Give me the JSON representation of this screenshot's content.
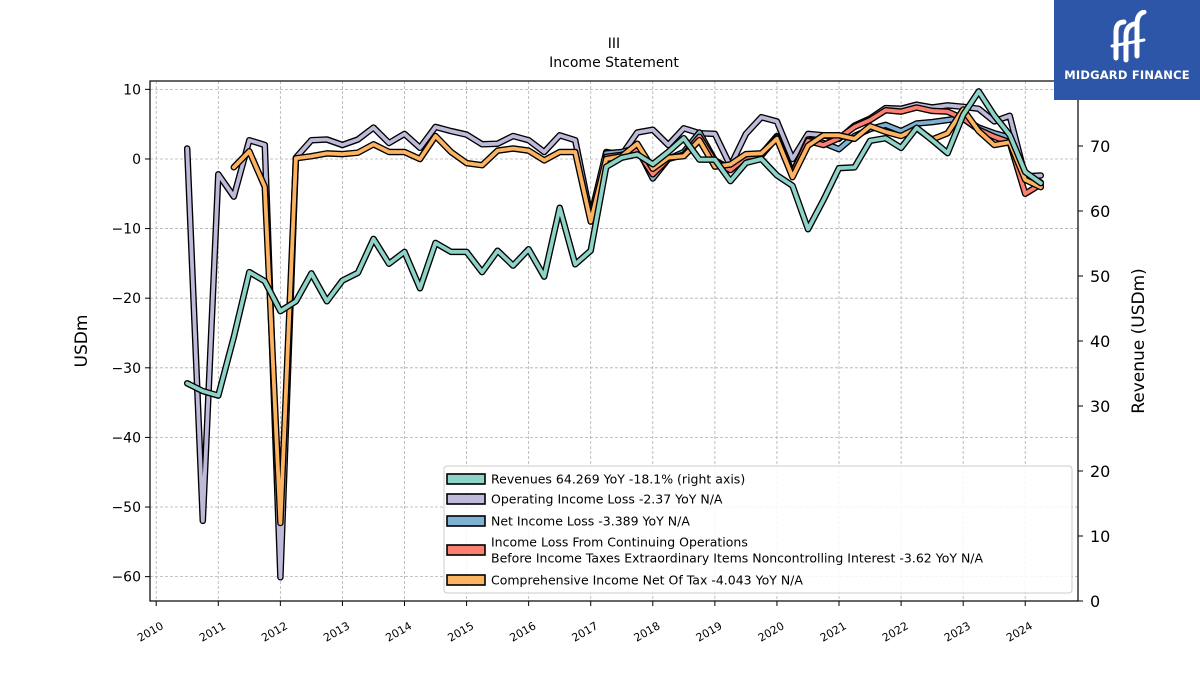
{
  "brand": {
    "name": "MIDGARD FINANCE"
  },
  "chart_data": {
    "type": "line",
    "title": "III",
    "subtitle": "Income Statement",
    "ylabel": "USDm",
    "ylabel_right": "Revenue (USDm)",
    "ylim": [
      -63.5,
      11.2
    ],
    "ylim_right": [
      0,
      80
    ],
    "xlim": [
      2009.9,
      2024.85
    ],
    "yticks": [
      10,
      0,
      -10,
      -20,
      -30,
      -40,
      -50,
      -60
    ],
    "yticks_right": [
      0,
      10,
      20,
      30,
      40,
      50,
      60,
      70
    ],
    "xticks": [
      2010,
      2011,
      2012,
      2013,
      2014,
      2015,
      2016,
      2017,
      2018,
      2019,
      2020,
      2021,
      2022,
      2023,
      2024
    ],
    "grid": true,
    "legend_position": "lower right",
    "series": [
      {
        "name": "Revenues  64.269 YoY -18.1% (right axis)",
        "color": "#8dd3c7",
        "axis": "right",
        "points": [
          [
            2010.5,
            33.5
          ],
          [
            2010.75,
            32.3
          ],
          [
            2011.0,
            31.6
          ],
          [
            2011.25,
            40.6
          ],
          [
            2011.5,
            50.6
          ],
          [
            2011.75,
            49.2
          ],
          [
            2012.0,
            44.6
          ],
          [
            2012.25,
            46.1
          ],
          [
            2012.5,
            50.4
          ],
          [
            2012.75,
            46.1
          ],
          [
            2013.0,
            49.3
          ],
          [
            2013.25,
            50.5
          ],
          [
            2013.5,
            55.7
          ],
          [
            2013.75,
            51.9
          ],
          [
            2014.0,
            53.7
          ],
          [
            2014.25,
            48.1
          ],
          [
            2014.5,
            55.1
          ],
          [
            2014.75,
            53.7
          ],
          [
            2015.0,
            53.7
          ],
          [
            2015.25,
            50.6
          ],
          [
            2015.5,
            53.9
          ],
          [
            2015.75,
            51.6
          ],
          [
            2016.0,
            54.1
          ],
          [
            2016.25,
            49.9
          ],
          [
            2016.5,
            60.5
          ],
          [
            2016.75,
            51.8
          ],
          [
            2017.0,
            53.9
          ],
          [
            2017.25,
            66.8
          ],
          [
            2017.5,
            68.2
          ],
          [
            2017.75,
            68.7
          ],
          [
            2018.0,
            67.2
          ],
          [
            2018.25,
            69.1
          ],
          [
            2018.5,
            71.2
          ],
          [
            2018.75,
            67.9
          ],
          [
            2019.0,
            67.9
          ],
          [
            2019.25,
            64.6
          ],
          [
            2019.5,
            67.4
          ],
          [
            2019.75,
            68.0
          ],
          [
            2020.0,
            65.5
          ],
          [
            2020.25,
            63.9
          ],
          [
            2020.5,
            57.2
          ],
          [
            2020.75,
            61.7
          ],
          [
            2021.0,
            66.6
          ],
          [
            2021.25,
            66.7
          ],
          [
            2021.5,
            70.8
          ],
          [
            2021.75,
            71.2
          ],
          [
            2022.0,
            69.7
          ],
          [
            2022.25,
            72.8
          ],
          [
            2022.5,
            70.9
          ],
          [
            2022.75,
            68.9
          ],
          [
            2023.0,
            74.8
          ],
          [
            2023.25,
            78.4
          ],
          [
            2023.5,
            74.7
          ],
          [
            2023.75,
            71.7
          ],
          [
            2024.0,
            66.0
          ],
          [
            2024.25,
            64.3
          ]
        ]
      },
      {
        "name": "Operating Income Loss  -2.37 YoY N/A",
        "color": "#bebada",
        "axis": "left",
        "points": [
          [
            2010.5,
            1.5
          ],
          [
            2010.75,
            -52.0
          ],
          [
            2011.0,
            -2.2
          ],
          [
            2011.25,
            -5.4
          ],
          [
            2011.5,
            2.7
          ],
          [
            2011.75,
            2.0
          ],
          [
            2012.0,
            -60.1
          ],
          [
            2012.25,
            0.2
          ],
          [
            2012.5,
            2.7
          ],
          [
            2012.75,
            2.8
          ],
          [
            2013.0,
            2.0
          ],
          [
            2013.25,
            2.8
          ],
          [
            2013.5,
            4.5
          ],
          [
            2013.75,
            2.3
          ],
          [
            2014.0,
            3.6
          ],
          [
            2014.25,
            1.6
          ],
          [
            2014.5,
            4.6
          ],
          [
            2014.75,
            4.0
          ],
          [
            2015.0,
            3.5
          ],
          [
            2015.25,
            2.1
          ],
          [
            2015.5,
            2.2
          ],
          [
            2015.75,
            3.3
          ],
          [
            2016.0,
            2.7
          ],
          [
            2016.25,
            1.0
          ],
          [
            2016.5,
            3.4
          ],
          [
            2016.75,
            2.7
          ],
          [
            2017.0,
            -8.3
          ],
          [
            2017.25,
            1.0
          ],
          [
            2017.5,
            0.6
          ],
          [
            2017.75,
            3.8
          ],
          [
            2018.0,
            4.2
          ],
          [
            2018.25,
            2.0
          ],
          [
            2018.5,
            4.4
          ],
          [
            2018.75,
            3.7
          ],
          [
            2019.0,
            3.6
          ],
          [
            2019.25,
            -1.0
          ],
          [
            2019.5,
            3.6
          ],
          [
            2019.75,
            6.0
          ],
          [
            2020.0,
            5.4
          ],
          [
            2020.25,
            0.0
          ],
          [
            2020.5,
            3.6
          ],
          [
            2020.75,
            3.4
          ],
          [
            2021.0,
            2.9
          ],
          [
            2021.25,
            4.8
          ],
          [
            2021.5,
            5.8
          ],
          [
            2021.75,
            7.3
          ],
          [
            2022.0,
            7.2
          ],
          [
            2022.25,
            7.8
          ],
          [
            2022.5,
            7.4
          ],
          [
            2022.75,
            7.7
          ],
          [
            2023.0,
            7.5
          ],
          [
            2023.25,
            7.2
          ],
          [
            2023.5,
            5.4
          ],
          [
            2023.75,
            6.2
          ],
          [
            2024.0,
            -2.5
          ],
          [
            2024.25,
            -2.37
          ]
        ]
      },
      {
        "name": "Net Income Loss  -3.389 YoY N/A",
        "color": "#80b1d3",
        "axis": "left",
        "points": [
          [
            2017.25,
            0.8
          ],
          [
            2017.5,
            1.0
          ],
          [
            2017.75,
            1.6
          ],
          [
            2018.0,
            -2.8
          ],
          [
            2018.25,
            0.0
          ],
          [
            2018.5,
            1.0
          ],
          [
            2018.75,
            3.8
          ],
          [
            2019.0,
            -0.2
          ],
          [
            2019.25,
            -1.4
          ],
          [
            2019.5,
            0.5
          ],
          [
            2019.75,
            0.7
          ],
          [
            2020.0,
            3.3
          ],
          [
            2020.25,
            -2.0
          ],
          [
            2020.5,
            2.8
          ],
          [
            2020.75,
            2.3
          ],
          [
            2021.0,
            1.4
          ],
          [
            2021.25,
            3.3
          ],
          [
            2021.5,
            4.3
          ],
          [
            2021.75,
            4.9
          ],
          [
            2022.0,
            4.0
          ],
          [
            2022.25,
            5.1
          ],
          [
            2022.5,
            5.3
          ],
          [
            2022.75,
            5.6
          ],
          [
            2023.0,
            5.9
          ],
          [
            2023.25,
            4.5
          ],
          [
            2023.5,
            3.7
          ],
          [
            2023.75,
            3.1
          ],
          [
            2024.0,
            -2.3
          ],
          [
            2024.25,
            -3.389
          ]
        ]
      },
      {
        "name": "Income Loss From Continuing Operations\nBefore Income Taxes Extraordinary Items Noncontrolling Interest  -3.62 YoY N/A",
        "color": "#fb8072",
        "axis": "left",
        "points": [
          [
            2017.25,
            0.3
          ],
          [
            2017.5,
            0.6
          ],
          [
            2017.75,
            1.2
          ],
          [
            2018.0,
            -2.2
          ],
          [
            2018.25,
            0.0
          ],
          [
            2018.5,
            0.6
          ],
          [
            2018.75,
            3.2
          ],
          [
            2019.0,
            -0.4
          ],
          [
            2019.25,
            -1.6
          ],
          [
            2019.5,
            0.3
          ],
          [
            2019.75,
            0.5
          ],
          [
            2020.0,
            3.1
          ],
          [
            2020.25,
            -2.1
          ],
          [
            2020.5,
            2.6
          ],
          [
            2020.75,
            2.0
          ],
          [
            2021.0,
            3.0
          ],
          [
            2021.25,
            4.6
          ],
          [
            2021.5,
            5.6
          ],
          [
            2021.75,
            7.0
          ],
          [
            2022.0,
            6.8
          ],
          [
            2022.25,
            7.4
          ],
          [
            2022.5,
            6.9
          ],
          [
            2022.75,
            6.8
          ],
          [
            2023.0,
            5.8
          ],
          [
            2023.25,
            4.2
          ],
          [
            2023.5,
            3.2
          ],
          [
            2023.75,
            2.4
          ],
          [
            2024.0,
            -5.0
          ],
          [
            2024.25,
            -3.62
          ]
        ]
      },
      {
        "name": "Comprehensive Income Net Of Tax  -4.043 YoY N/A",
        "color": "#fdb462",
        "axis": "left",
        "points": [
          [
            2011.25,
            -1.2
          ],
          [
            2011.5,
            1.1
          ],
          [
            2011.75,
            -4.0
          ],
          [
            2012.0,
            -52.3
          ],
          [
            2012.25,
            0.1
          ],
          [
            2012.5,
            0.4
          ],
          [
            2012.75,
            0.8
          ],
          [
            2013.0,
            0.7
          ],
          [
            2013.25,
            0.9
          ],
          [
            2013.5,
            2.1
          ],
          [
            2013.75,
            1.0
          ],
          [
            2014.0,
            1.0
          ],
          [
            2014.25,
            0.0
          ],
          [
            2014.5,
            3.3
          ],
          [
            2014.75,
            1.0
          ],
          [
            2015.0,
            -0.6
          ],
          [
            2015.25,
            -0.9
          ],
          [
            2015.5,
            1.2
          ],
          [
            2015.75,
            1.5
          ],
          [
            2016.0,
            1.2
          ],
          [
            2016.25,
            -0.2
          ],
          [
            2016.5,
            1.0
          ],
          [
            2016.75,
            1.0
          ],
          [
            2017.0,
            -9.0
          ],
          [
            2017.25,
            0.0
          ],
          [
            2017.5,
            0.4
          ],
          [
            2017.75,
            2.2
          ],
          [
            2018.0,
            -1.4
          ],
          [
            2018.25,
            0.2
          ],
          [
            2018.5,
            0.4
          ],
          [
            2018.75,
            2.7
          ],
          [
            2019.0,
            -1.1
          ],
          [
            2019.25,
            -0.8
          ],
          [
            2019.5,
            0.7
          ],
          [
            2019.75,
            0.8
          ],
          [
            2020.0,
            2.9
          ],
          [
            2020.25,
            -2.6
          ],
          [
            2020.5,
            1.9
          ],
          [
            2020.75,
            3.4
          ],
          [
            2021.0,
            3.4
          ],
          [
            2021.25,
            2.9
          ],
          [
            2021.5,
            4.7
          ],
          [
            2021.75,
            3.9
          ],
          [
            2022.0,
            3.3
          ],
          [
            2022.25,
            4.4
          ],
          [
            2022.5,
            2.8
          ],
          [
            2022.75,
            3.7
          ],
          [
            2023.0,
            7.1
          ],
          [
            2023.25,
            4.0
          ],
          [
            2023.5,
            2.0
          ],
          [
            2023.75,
            2.4
          ],
          [
            2024.0,
            -3.0
          ],
          [
            2024.25,
            -4.043
          ]
        ]
      }
    ]
  }
}
